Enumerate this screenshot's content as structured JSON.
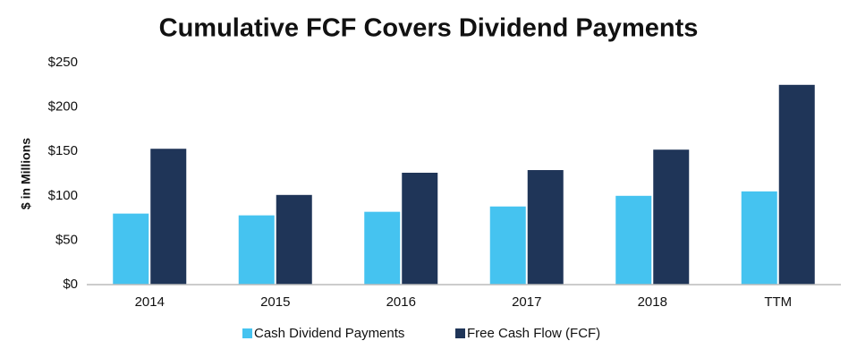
{
  "chart_data": {
    "type": "bar",
    "title": "Cumulative FCF Covers Dividend Payments",
    "y_label": "$ in Millions",
    "categories": [
      "2014",
      "2015",
      "2016",
      "2017",
      "2018",
      "TTM"
    ],
    "series": [
      {
        "name": "Cash Dividend Payments",
        "color": "#45c3f0",
        "values": [
          80,
          78,
          82,
          88,
          100,
          105
        ]
      },
      {
        "name": "Free Cash Flow (FCF)",
        "color": "#1f3558",
        "values": [
          153,
          101,
          126,
          129,
          152,
          225
        ]
      }
    ],
    "ylim": [
      0,
      250
    ],
    "yticks": [
      {
        "value": 0,
        "label": "$0"
      },
      {
        "value": 50,
        "label": "$50"
      },
      {
        "value": 100,
        "label": "$100"
      },
      {
        "value": 150,
        "label": "$150"
      },
      {
        "value": 200,
        "label": "$200"
      },
      {
        "value": 250,
        "label": "$250"
      }
    ],
    "grid": false,
    "legend": "bottom"
  }
}
